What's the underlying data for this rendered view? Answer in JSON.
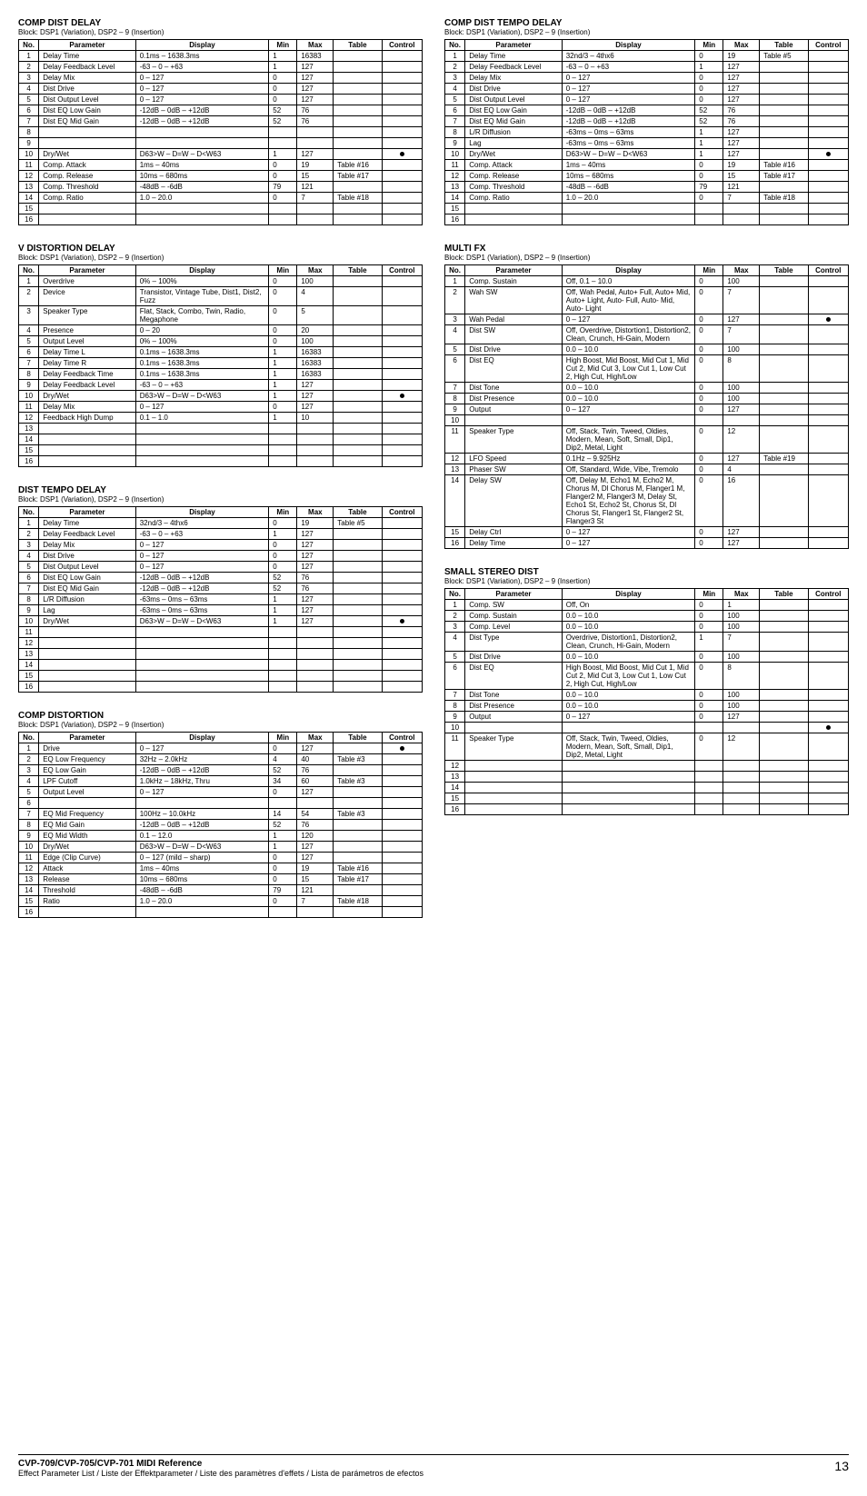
{
  "footer": {
    "title": "CVP-709/CVP-705/CVP-701 MIDI Reference",
    "sub": "Effect Parameter List / Liste der Effektparameter / Liste des paramètres d'effets / Lista de parámetros de efectos",
    "page": "13"
  },
  "headers": [
    "No.",
    "Parameter",
    "Display",
    "Min",
    "Max",
    "Table",
    "Control"
  ],
  "sections": [
    {
      "col": 0,
      "title": "COMP DIST DELAY",
      "sub": "Block: DSP1 (Variation), DSP2 – 9 (Insertion)",
      "rows": [
        [
          "1",
          "Delay Time",
          "0.1ms – 1638.3ms",
          "1",
          "16383",
          "",
          ""
        ],
        [
          "2",
          "Delay Feedback Level",
          "-63 – 0 – +63",
          "1",
          "127",
          "",
          ""
        ],
        [
          "3",
          "Delay Mix",
          "0 – 127",
          "0",
          "127",
          "",
          ""
        ],
        [
          "4",
          "Dist Drive",
          "0 – 127",
          "0",
          "127",
          "",
          ""
        ],
        [
          "5",
          "Dist Output Level",
          "0 – 127",
          "0",
          "127",
          "",
          ""
        ],
        [
          "6",
          "Dist EQ Low Gain",
          "-12dB – 0dB – +12dB",
          "52",
          "76",
          "",
          ""
        ],
        [
          "7",
          "Dist EQ Mid Gain",
          "-12dB – 0dB – +12dB",
          "52",
          "76",
          "",
          ""
        ],
        [
          "8",
          "",
          "",
          "",
          "",
          "",
          ""
        ],
        [
          "9",
          "",
          "",
          "",
          "",
          "",
          ""
        ],
        [
          "10",
          "Dry/Wet",
          "D63>W – D=W – D<W63",
          "1",
          "127",
          "",
          "●"
        ],
        [
          "11",
          "Comp. Attack",
          "1ms – 40ms",
          "0",
          "19",
          "Table #16",
          ""
        ],
        [
          "12",
          "Comp. Release",
          "10ms – 680ms",
          "0",
          "15",
          "Table #17",
          ""
        ],
        [
          "13",
          "Comp. Threshold",
          "-48dB – -6dB",
          "79",
          "121",
          "",
          ""
        ],
        [
          "14",
          "Comp. Ratio",
          "1.0 – 20.0",
          "0",
          "7",
          "Table #18",
          ""
        ],
        [
          "15",
          "",
          "",
          "",
          "",
          "",
          ""
        ],
        [
          "16",
          "",
          "",
          "",
          "",
          "",
          ""
        ]
      ]
    },
    {
      "col": 0,
      "title": "V DISTORTION DELAY",
      "sub": "Block: DSP1 (Variation), DSP2 – 9 (Insertion)",
      "rows": [
        [
          "1",
          "Overdrive",
          "0% – 100%",
          "0",
          "100",
          "",
          ""
        ],
        [
          "2",
          "Device",
          "Transistor, Vintage Tube, Dist1, Dist2, Fuzz",
          "0",
          "4",
          "",
          ""
        ],
        [
          "3",
          "Speaker Type",
          "Flat, Stack, Combo, Twin, Radio, Megaphone",
          "0",
          "5",
          "",
          ""
        ],
        [
          "4",
          "Presence",
          "0 – 20",
          "0",
          "20",
          "",
          ""
        ],
        [
          "5",
          "Output Level",
          "0% – 100%",
          "0",
          "100",
          "",
          ""
        ],
        [
          "6",
          "Delay Time L",
          "0.1ms – 1638.3ms",
          "1",
          "16383",
          "",
          ""
        ],
        [
          "7",
          "Delay Time R",
          "0.1ms – 1638.3ms",
          "1",
          "16383",
          "",
          ""
        ],
        [
          "8",
          "Delay Feedback Time",
          "0.1ms – 1638.3ms",
          "1",
          "16383",
          "",
          ""
        ],
        [
          "9",
          "Delay Feedback Level",
          "-63 – 0 – +63",
          "1",
          "127",
          "",
          ""
        ],
        [
          "10",
          "Dry/Wet",
          "D63>W – D=W – D<W63",
          "1",
          "127",
          "",
          "●"
        ],
        [
          "11",
          "Delay Mix",
          "0 – 127",
          "0",
          "127",
          "",
          ""
        ],
        [
          "12",
          "Feedback High Dump",
          "0.1 – 1.0",
          "1",
          "10",
          "",
          ""
        ],
        [
          "13",
          "",
          "",
          "",
          "",
          "",
          ""
        ],
        [
          "14",
          "",
          "",
          "",
          "",
          "",
          ""
        ],
        [
          "15",
          "",
          "",
          "",
          "",
          "",
          ""
        ],
        [
          "16",
          "",
          "",
          "",
          "",
          "",
          ""
        ]
      ]
    },
    {
      "col": 0,
      "title": "DIST TEMPO DELAY",
      "sub": "Block: DSP1 (Variation), DSP2 – 9 (Insertion)",
      "rows": [
        [
          "1",
          "Delay Time",
          "32nd/3 – 4thx6",
          "0",
          "19",
          "Table #5",
          ""
        ],
        [
          "2",
          "Delay Feedback Level",
          "-63 – 0 – +63",
          "1",
          "127",
          "",
          ""
        ],
        [
          "3",
          "Delay Mix",
          "0 – 127",
          "0",
          "127",
          "",
          ""
        ],
        [
          "4",
          "Dist Drive",
          "0 – 127",
          "0",
          "127",
          "",
          ""
        ],
        [
          "5",
          "Dist Output Level",
          "0 – 127",
          "0",
          "127",
          "",
          ""
        ],
        [
          "6",
          "Dist EQ Low Gain",
          "-12dB – 0dB – +12dB",
          "52",
          "76",
          "",
          ""
        ],
        [
          "7",
          "Dist EQ Mid Gain",
          "-12dB – 0dB – +12dB",
          "52",
          "76",
          "",
          ""
        ],
        [
          "8",
          "L/R Diffusion",
          "-63ms – 0ms – 63ms",
          "1",
          "127",
          "",
          ""
        ],
        [
          "9",
          "Lag",
          "-63ms – 0ms – 63ms",
          "1",
          "127",
          "",
          ""
        ],
        [
          "10",
          "Dry/Wet",
          "D63>W – D=W – D<W63",
          "1",
          "127",
          "",
          "●"
        ],
        [
          "11",
          "",
          "",
          "",
          "",
          "",
          ""
        ],
        [
          "12",
          "",
          "",
          "",
          "",
          "",
          ""
        ],
        [
          "13",
          "",
          "",
          "",
          "",
          "",
          ""
        ],
        [
          "14",
          "",
          "",
          "",
          "",
          "",
          ""
        ],
        [
          "15",
          "",
          "",
          "",
          "",
          "",
          ""
        ],
        [
          "16",
          "",
          "",
          "",
          "",
          "",
          ""
        ]
      ]
    },
    {
      "col": 0,
      "title": "COMP DISTORTION",
      "sub": "Block: DSP1 (Variation), DSP2 – 9 (Insertion)",
      "rows": [
        [
          "1",
          "Drive",
          "0 – 127",
          "0",
          "127",
          "",
          "●"
        ],
        [
          "2",
          "EQ Low Frequency",
          "32Hz – 2.0kHz",
          "4",
          "40",
          "Table #3",
          ""
        ],
        [
          "3",
          "EQ Low Gain",
          "-12dB – 0dB – +12dB",
          "52",
          "76",
          "",
          ""
        ],
        [
          "4",
          "LPF Cutoff",
          "1.0kHz – 18kHz, Thru",
          "34",
          "60",
          "Table #3",
          ""
        ],
        [
          "5",
          "Output Level",
          "0 – 127",
          "0",
          "127",
          "",
          ""
        ],
        [
          "6",
          "",
          "",
          "",
          "",
          "",
          ""
        ],
        [
          "7",
          "EQ Mid Frequency",
          "100Hz – 10.0kHz",
          "14",
          "54",
          "Table #3",
          ""
        ],
        [
          "8",
          "EQ Mid Gain",
          "-12dB – 0dB – +12dB",
          "52",
          "76",
          "",
          ""
        ],
        [
          "9",
          "EQ Mid Width",
          "0.1 – 12.0",
          "1",
          "120",
          "",
          ""
        ],
        [
          "10",
          "Dry/Wet",
          "D63>W – D=W – D<W63",
          "1",
          "127",
          "",
          ""
        ],
        [
          "11",
          "Edge (Clip Curve)",
          "0 – 127 (mild – sharp)",
          "0",
          "127",
          "",
          ""
        ],
        [
          "12",
          "Attack",
          "1ms – 40ms",
          "0",
          "19",
          "Table #16",
          ""
        ],
        [
          "13",
          "Release",
          "10ms – 680ms",
          "0",
          "15",
          "Table #17",
          ""
        ],
        [
          "14",
          "Threshold",
          "-48dB – -6dB",
          "79",
          "121",
          "",
          ""
        ],
        [
          "15",
          "Ratio",
          "1.0 – 20.0",
          "0",
          "7",
          "Table #18",
          ""
        ],
        [
          "16",
          "",
          "",
          "",
          "",
          "",
          ""
        ]
      ]
    },
    {
      "col": 1,
      "title": "COMP DIST TEMPO DELAY",
      "sub": "Block: DSP1 (Variation), DSP2 – 9 (Insertion)",
      "rows": [
        [
          "1",
          "Delay Time",
          "32nd/3 – 4thx6",
          "0",
          "19",
          "Table #5",
          ""
        ],
        [
          "2",
          "Delay Feedback Level",
          "-63 – 0 – +63",
          "1",
          "127",
          "",
          ""
        ],
        [
          "3",
          "Delay Mix",
          "0 – 127",
          "0",
          "127",
          "",
          ""
        ],
        [
          "4",
          "Dist Drive",
          "0 – 127",
          "0",
          "127",
          "",
          ""
        ],
        [
          "5",
          "Dist Output Level",
          "0 – 127",
          "0",
          "127",
          "",
          ""
        ],
        [
          "6",
          "Dist EQ Low Gain",
          "-12dB – 0dB – +12dB",
          "52",
          "76",
          "",
          ""
        ],
        [
          "7",
          "Dist EQ Mid Gain",
          "-12dB – 0dB – +12dB",
          "52",
          "76",
          "",
          ""
        ],
        [
          "8",
          "L/R Diffusion",
          "-63ms – 0ms – 63ms",
          "1",
          "127",
          "",
          ""
        ],
        [
          "9",
          "Lag",
          "-63ms – 0ms – 63ms",
          "1",
          "127",
          "",
          ""
        ],
        [
          "10",
          "Dry/Wet",
          "D63>W – D=W – D<W63",
          "1",
          "127",
          "",
          "●"
        ],
        [
          "11",
          "Comp. Attack",
          "1ms – 40ms",
          "0",
          "19",
          "Table #16",
          ""
        ],
        [
          "12",
          "Comp. Release",
          "10ms – 680ms",
          "0",
          "15",
          "Table #17",
          ""
        ],
        [
          "13",
          "Comp. Threshold",
          "-48dB – -6dB",
          "79",
          "121",
          "",
          ""
        ],
        [
          "14",
          "Comp. Ratio",
          "1.0 – 20.0",
          "0",
          "7",
          "Table #18",
          ""
        ],
        [
          "15",
          "",
          "",
          "",
          "",
          "",
          ""
        ],
        [
          "16",
          "",
          "",
          "",
          "",
          "",
          ""
        ]
      ]
    },
    {
      "col": 1,
      "title": "MULTI FX",
      "sub": "Block: DSP1 (Variation), DSP2 – 9 (Insertion)",
      "rows": [
        [
          "1",
          "Comp. Sustain",
          "Off, 0.1 – 10.0",
          "0",
          "100",
          "",
          ""
        ],
        [
          "2",
          "Wah SW",
          "Off, Wah Pedal, Auto+ Full, Auto+ Mid, Auto+ Light, Auto- Full, Auto- Mid, Auto- Light",
          "0",
          "7",
          "",
          ""
        ],
        [
          "3",
          "Wah Pedal",
          "0 – 127",
          "0",
          "127",
          "",
          "●"
        ],
        [
          "4",
          "Dist SW",
          "Off, Overdrive, Distortion1, Distortion2, Clean, Crunch, Hi-Gain, Modern",
          "0",
          "7",
          "",
          ""
        ],
        [
          "5",
          "Dist Drive",
          "0.0 – 10.0",
          "0",
          "100",
          "",
          ""
        ],
        [
          "6",
          "Dist EQ",
          "High Boost, Mid Boost, Mid Cut 1, Mid Cut 2, Mid Cut 3, Low Cut 1, Low Cut 2, High Cut, High/Low",
          "0",
          "8",
          "",
          ""
        ],
        [
          "7",
          "Dist Tone",
          "0.0 – 10.0",
          "0",
          "100",
          "",
          ""
        ],
        [
          "8",
          "Dist Presence",
          "0.0 – 10.0",
          "0",
          "100",
          "",
          ""
        ],
        [
          "9",
          "Output",
          "0 – 127",
          "0",
          "127",
          "",
          ""
        ],
        [
          "10",
          "",
          "",
          "",
          "",
          "",
          ""
        ],
        [
          "11",
          "Speaker Type",
          "Off, Stack, Twin, Tweed, Oldies, Modern, Mean, Soft, Small, Dip1, Dip2, Metal, Light",
          "0",
          "12",
          "",
          ""
        ],
        [
          "12",
          "LFO Speed",
          "0.1Hz – 9.925Hz",
          "0",
          "127",
          "Table #19",
          ""
        ],
        [
          "13",
          "Phaser SW",
          "Off, Standard, Wide, Vibe, Tremolo",
          "0",
          "4",
          "",
          ""
        ],
        [
          "14",
          "Delay SW",
          "Off, Delay M, Echo1 M, Echo2 M, Chorus M, Dl Chorus M, Flanger1 M, Flanger2 M, Flanger3 M, Delay St, Echo1 St, Echo2 St, Chorus St, Dl Chorus St, Flanger1 St, Flanger2 St, Flanger3 St",
          "0",
          "16",
          "",
          ""
        ],
        [
          "15",
          "Delay Ctrl",
          "0 – 127",
          "0",
          "127",
          "",
          ""
        ],
        [
          "16",
          "Delay Time",
          "0 – 127",
          "0",
          "127",
          "",
          ""
        ]
      ]
    },
    {
      "col": 1,
      "title": "SMALL STEREO DIST",
      "sub": "Block: DSP1 (Variation), DSP2 – 9 (Insertion)",
      "rows": [
        [
          "1",
          "Comp. SW",
          "Off, On",
          "0",
          "1",
          "",
          ""
        ],
        [
          "2",
          "Comp. Sustain",
          "0.0 – 10.0",
          "0",
          "100",
          "",
          ""
        ],
        [
          "3",
          "Comp. Level",
          "0.0 – 10.0",
          "0",
          "100",
          "",
          ""
        ],
        [
          "4",
          "Dist Type",
          "Overdrive, Distortion1, Distortion2, Clean, Crunch, Hi-Gain, Modern",
          "1",
          "7",
          "",
          ""
        ],
        [
          "5",
          "Dist Drive",
          "0.0 – 10.0",
          "0",
          "100",
          "",
          ""
        ],
        [
          "6",
          "Dist EQ",
          "High Boost, Mid Boost, Mid Cut 1, Mid Cut 2, Mid Cut 3, Low Cut 1, Low Cut 2, High Cut, High/Low",
          "0",
          "8",
          "",
          ""
        ],
        [
          "7",
          "Dist Tone",
          "0.0 – 10.0",
          "0",
          "100",
          "",
          ""
        ],
        [
          "8",
          "Dist Presence",
          "0.0 – 10.0",
          "0",
          "100",
          "",
          ""
        ],
        [
          "9",
          "Output",
          "0 – 127",
          "0",
          "127",
          "",
          ""
        ],
        [
          "10",
          "",
          "",
          "",
          "",
          "",
          "●"
        ],
        [
          "11",
          "Speaker Type",
          "Off, Stack, Twin, Tweed, Oldies, Modern, Mean, Soft, Small, Dip1, Dip2, Metal, Light",
          "0",
          "12",
          "",
          ""
        ],
        [
          "12",
          "",
          "",
          "",
          "",
          "",
          ""
        ],
        [
          "13",
          "",
          "",
          "",
          "",
          "",
          ""
        ],
        [
          "14",
          "",
          "",
          "",
          "",
          "",
          ""
        ],
        [
          "15",
          "",
          "",
          "",
          "",
          "",
          ""
        ],
        [
          "16",
          "",
          "",
          "",
          "",
          "",
          ""
        ]
      ]
    }
  ]
}
